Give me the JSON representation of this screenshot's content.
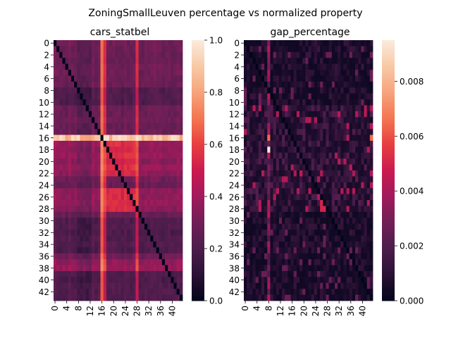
{
  "figure": {
    "suptitle": "ZoningSmallLeuven percentage vs normalized property"
  },
  "chart_data": [
    {
      "type": "heatmap",
      "title": "cars_statbel",
      "size": 44,
      "colormap": "rocket",
      "vmin": 0.0,
      "vmax": 1.0,
      "colorbar_ticks": [
        0.0,
        0.2,
        0.4,
        0.6,
        0.8,
        1.0
      ],
      "colorbar_tick_labels": [
        "0.0",
        "0.2",
        "0.4",
        "0.6",
        "0.8",
        "1.0"
      ],
      "y_tick_labels": [
        "0",
        "2",
        "4",
        "6",
        "8",
        "10",
        "12",
        "14",
        "16",
        "18",
        "20",
        "22",
        "24",
        "26",
        "28",
        "30",
        "32",
        "34",
        "36",
        "38",
        "40",
        "42"
      ],
      "x_tick_labels": [
        "0",
        "4",
        "8",
        "12",
        "16",
        "20",
        "24",
        "28",
        "32",
        "36",
        "40"
      ],
      "diagonal": 0.0,
      "high_rows": [
        16
      ],
      "high_cols": [
        16,
        17,
        28
      ],
      "bright_rows": [
        17,
        18,
        19,
        20,
        21,
        22,
        25,
        26,
        27,
        28,
        37,
        38
      ],
      "dark_rows": [
        8,
        9,
        10,
        30,
        31,
        32,
        33,
        34,
        35,
        39,
        40,
        41,
        42,
        43
      ]
    },
    {
      "type": "heatmap",
      "title": "gap_percentage",
      "size": 44,
      "colormap": "rocket",
      "vmin": 0.0,
      "vmax": 0.0095,
      "colorbar_ticks": [
        0.0,
        0.002,
        0.004,
        0.006,
        0.008
      ],
      "colorbar_tick_labels": [
        "0.000",
        "0.002",
        "0.004",
        "0.006",
        "0.008"
      ],
      "y_tick_labels": [
        "0",
        "2",
        "4",
        "6",
        "8",
        "10",
        "12",
        "14",
        "16",
        "18",
        "20",
        "22",
        "24",
        "26",
        "28",
        "30",
        "32",
        "34",
        "36",
        "38",
        "40",
        "42"
      ],
      "x_tick_labels": [
        "0",
        "4",
        "8",
        "12",
        "16",
        "20",
        "24",
        "28",
        "32",
        "36",
        "40"
      ],
      "diagonal": 0.0,
      "high_cols": [
        8
      ],
      "peak_value": 0.0095
    }
  ],
  "colors": {
    "rocket": [
      "#03051a",
      "#2b1135",
      "#4c1d4b",
      "#701f57",
      "#a11a5b",
      "#cb1b4f",
      "#e83f3f",
      "#f37651",
      "#f6a47c",
      "#f8c9a6",
      "#faebdd"
    ]
  }
}
